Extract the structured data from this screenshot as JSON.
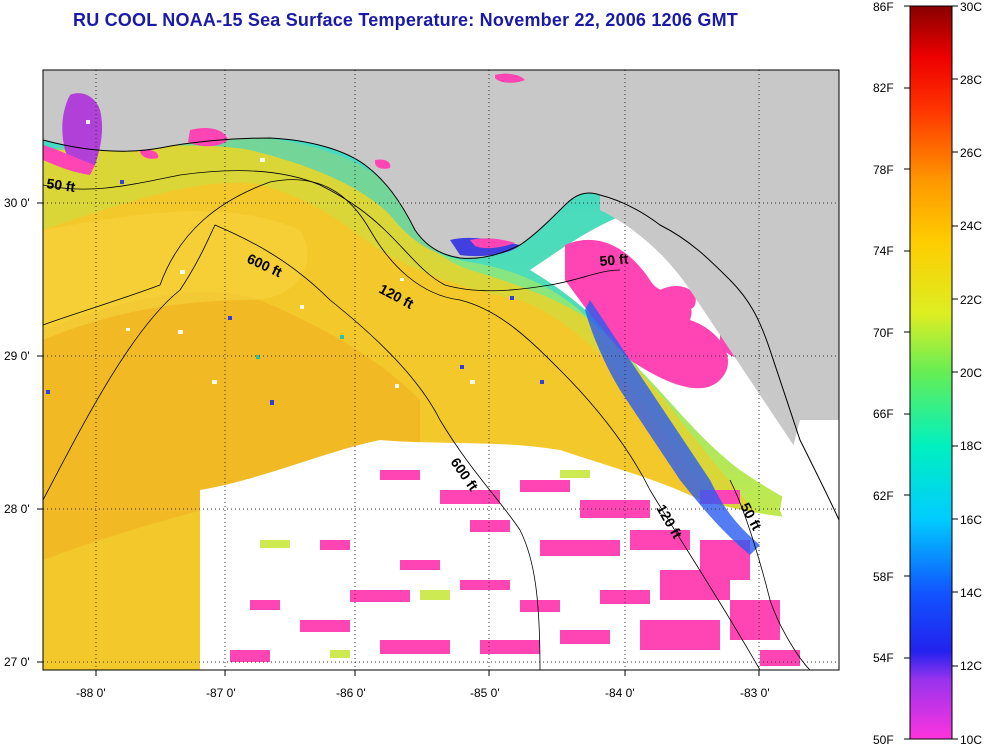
{
  "title": "RU COOL  NOAA-15  Sea Surface Temperature:  November 22, 2006 1206 GMT",
  "map": {
    "x_ticks": [
      "-88 0'",
      "-87 0'",
      "-86 0'",
      "-85 0'",
      "-84 0'",
      "-83 0'"
    ],
    "y_ticks": [
      "30 0'",
      "29 0'",
      "28 0'",
      "27 0'"
    ],
    "contour_labels": [
      "50 ft",
      "600 ft",
      "120 ft",
      "50 ft",
      "600 ft",
      "120 ft",
      "50 ft"
    ]
  },
  "colorbar": {
    "fahrenheit": [
      "86F",
      "82F",
      "78F",
      "74F",
      "70F",
      "66F",
      "62F",
      "58F",
      "54F",
      "50F"
    ],
    "celsius": [
      "30C",
      "28C",
      "26C",
      "24C",
      "22C",
      "20C",
      "18C",
      "16C",
      "14C",
      "12C",
      "10C"
    ]
  },
  "colors": {
    "title": "#1a1aa8",
    "land": "#c8c8c8",
    "cloud": "#ffffff",
    "warm_water": "#f3cf2c",
    "cold_pink": "#ff44b4"
  }
}
